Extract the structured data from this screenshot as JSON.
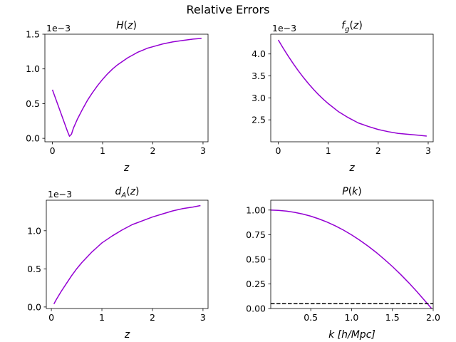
{
  "figure": {
    "suptitle": "Relative Errors"
  },
  "colors": {
    "line": "#9400d3",
    "ref": "#000000"
  },
  "chart_data": [
    {
      "type": "line",
      "title": "H(z)",
      "xlabel": "z",
      "ylabel": "",
      "offset_label": "1e−3",
      "xlim": [
        -0.15,
        3.1
      ],
      "ylim": [
        -0.05,
        1.5
      ],
      "xticks": [
        0,
        1,
        2,
        3
      ],
      "yticks": [
        0.0,
        0.5,
        1.0,
        1.5
      ],
      "ytick_labels": [
        "0.0",
        "0.5",
        "1.0",
        "1.5"
      ],
      "series": [
        {
          "x": [
            0,
            0.1,
            0.2,
            0.3,
            0.34,
            0.38,
            0.42,
            0.5,
            0.6,
            0.7,
            0.8,
            0.9,
            1.0,
            1.1,
            1.2,
            1.3,
            1.4,
            1.5,
            1.6,
            1.7,
            1.8,
            1.9,
            2.0,
            2.2,
            2.4,
            2.6,
            2.8,
            2.97
          ],
          "y": [
            0.7,
            0.5,
            0.3,
            0.1,
            0.03,
            0.06,
            0.15,
            0.28,
            0.42,
            0.55,
            0.66,
            0.76,
            0.85,
            0.93,
            1.0,
            1.06,
            1.11,
            1.16,
            1.2,
            1.24,
            1.27,
            1.3,
            1.32,
            1.36,
            1.39,
            1.41,
            1.43,
            1.44
          ]
        }
      ]
    },
    {
      "type": "line",
      "title": "f_g(z)",
      "xlabel": "z",
      "ylabel": "",
      "offset_label": "1e−3",
      "xlim": [
        -0.15,
        3.1
      ],
      "ylim": [
        2.0,
        4.45
      ],
      "xticks": [
        0,
        1,
        2,
        3
      ],
      "yticks": [
        2.5,
        3.0,
        3.5,
        4.0
      ],
      "ytick_labels": [
        "2.5",
        "3.0",
        "3.5",
        "4.0"
      ],
      "series": [
        {
          "x": [
            0,
            0.1,
            0.2,
            0.3,
            0.4,
            0.5,
            0.6,
            0.7,
            0.8,
            0.9,
            1.0,
            1.2,
            1.4,
            1.6,
            1.8,
            2.0,
            2.2,
            2.4,
            2.6,
            2.8,
            2.97
          ],
          "y": [
            4.32,
            4.13,
            3.95,
            3.78,
            3.62,
            3.47,
            3.33,
            3.2,
            3.08,
            2.97,
            2.87,
            2.69,
            2.55,
            2.43,
            2.35,
            2.28,
            2.23,
            2.19,
            2.17,
            2.15,
            2.13
          ]
        }
      ]
    },
    {
      "type": "line",
      "title": "d_A(z)",
      "xlabel": "z",
      "ylabel": "",
      "offset_label": "1e−3",
      "xlim": [
        -0.1,
        3.1
      ],
      "ylim": [
        -0.02,
        1.4
      ],
      "xticks": [
        0,
        1,
        2,
        3
      ],
      "yticks": [
        0.0,
        0.5,
        1.0
      ],
      "ytick_labels": [
        "0.0",
        "0.5",
        "1.0"
      ],
      "series": [
        {
          "x": [
            0.05,
            0.1,
            0.2,
            0.3,
            0.4,
            0.5,
            0.6,
            0.7,
            0.8,
            0.9,
            1.0,
            1.2,
            1.4,
            1.6,
            1.8,
            2.0,
            2.2,
            2.4,
            2.6,
            2.8,
            2.95
          ],
          "y": [
            0.04,
            0.1,
            0.21,
            0.31,
            0.41,
            0.5,
            0.58,
            0.65,
            0.72,
            0.78,
            0.84,
            0.93,
            1.01,
            1.08,
            1.13,
            1.18,
            1.22,
            1.26,
            1.29,
            1.31,
            1.33
          ]
        }
      ]
    },
    {
      "type": "line",
      "title": "P(k)",
      "xlabel": "k [h/Mpc]",
      "ylabel": "",
      "offset_label": "",
      "xlim": [
        0.01,
        2.0
      ],
      "ylim": [
        0.0,
        1.1
      ],
      "xticks": [
        0.5,
        1.0,
        1.5,
        2.0
      ],
      "xtick_labels": [
        "0.5",
        "1.0",
        "1.5",
        "2.0"
      ],
      "yticks": [
        0.0,
        0.25,
        0.5,
        0.75,
        1.0
      ],
      "ytick_labels": [
        "0.00",
        "0.25",
        "0.50",
        "0.75",
        "1.00"
      ],
      "series": [
        {
          "x": [
            0.01,
            0.1,
            0.2,
            0.3,
            0.4,
            0.5,
            0.6,
            0.7,
            0.8,
            0.9,
            1.0,
            1.1,
            1.2,
            1.3,
            1.4,
            1.5,
            1.6,
            1.7,
            1.8,
            1.9,
            1.98
          ],
          "y": [
            1.0,
            0.997,
            0.99,
            0.977,
            0.96,
            0.938,
            0.91,
            0.878,
            0.84,
            0.797,
            0.748,
            0.694,
            0.635,
            0.571,
            0.501,
            0.427,
            0.347,
            0.262,
            0.172,
            0.077,
            0.0
          ]
        }
      ],
      "reference_line": {
        "y": 0.05,
        "style": "dashed"
      }
    }
  ]
}
